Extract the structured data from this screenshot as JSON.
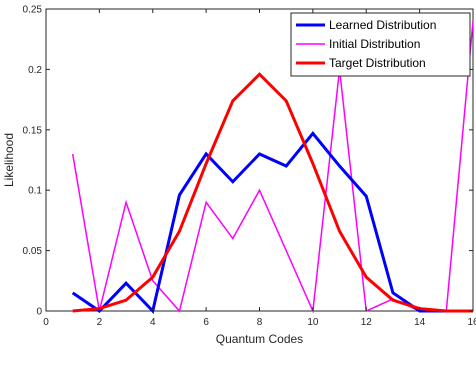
{
  "chart_data": {
    "type": "line",
    "xlabel": "Quantum Codes",
    "ylabel": "Likelihood",
    "xlim": [
      0,
      16
    ],
    "ylim": [
      0,
      0.25
    ],
    "xticks": [
      0,
      2,
      4,
      6,
      8,
      10,
      12,
      14,
      16
    ],
    "yticks": [
      0,
      0.05,
      0.1,
      0.15,
      0.2,
      0.25
    ],
    "xtick_labels": [
      "0",
      "2",
      "4",
      "6",
      "8",
      "10",
      "12",
      "14",
      "16"
    ],
    "ytick_labels": [
      "0",
      "0.05",
      "0.1",
      "0.15",
      "0.2",
      "0.25"
    ],
    "grid": false,
    "legend_position": "top-right",
    "x": [
      1,
      2,
      3,
      4,
      5,
      6,
      7,
      8,
      9,
      10,
      11,
      12,
      13,
      14,
      15,
      16
    ],
    "series": [
      {
        "name": "Learned Distribution",
        "color": "#0000ff",
        "line_width": "thick",
        "values": [
          0.015,
          0.0,
          0.023,
          0.0,
          0.096,
          0.13,
          0.107,
          0.13,
          0.12,
          0.147,
          0.12,
          0.095,
          0.015,
          0.0,
          0.0,
          0.0
        ]
      },
      {
        "name": "Initial Distribution",
        "color": "#ff00ff",
        "line_width": "thin",
        "values": [
          0.13,
          0.0,
          0.09,
          0.025,
          0.0,
          0.09,
          0.06,
          0.1,
          0.05,
          0.0,
          0.2,
          0.0,
          0.01,
          0.0,
          0.0,
          0.24
        ]
      },
      {
        "name": "Target Distribution",
        "color": "#ff0000",
        "line_width": "thick",
        "values": [
          0.0,
          0.002,
          0.009,
          0.028,
          0.066,
          0.122,
          0.174,
          0.196,
          0.174,
          0.122,
          0.066,
          0.028,
          0.009,
          0.002,
          0.0,
          0.0
        ]
      }
    ]
  }
}
